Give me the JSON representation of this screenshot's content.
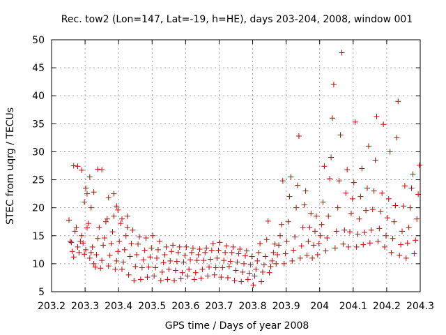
{
  "chart_data": {
    "type": "scatter",
    "title": "Rec. tow2 (Lon=147, Lat=-19, h=HE), days 203-204, 2008, window 001",
    "xlabel": "GPS time / Days of year 2008",
    "ylabel": "STEC from uqrg / TECUs",
    "xlim": [
      203.2,
      204.3
    ],
    "ylim": [
      5,
      50
    ],
    "xticks": [
      "203.2",
      "203.3",
      "203.4",
      "203.5",
      "203.6",
      "203.7",
      "203.8",
      "203.9",
      "204",
      "204.1",
      "204.2",
      "204.3"
    ],
    "yticks": [
      "5",
      "10",
      "15",
      "20",
      "25",
      "30",
      "35",
      "40",
      "45",
      "50"
    ],
    "grid": true,
    "marker": "plus",
    "color": "#cc0000",
    "points": [
      [
        203.252,
        17.8
      ],
      [
        203.256,
        14
      ],
      [
        203.259,
        13.8
      ],
      [
        203.262,
        12.2
      ],
      [
        203.266,
        11.2
      ],
      [
        203.27,
        15.8
      ],
      [
        203.274,
        16.5
      ],
      [
        203.278,
        13
      ],
      [
        203.282,
        12
      ],
      [
        203.286,
        14
      ],
      [
        203.29,
        15
      ],
      [
        203.294,
        13.7
      ],
      [
        203.298,
        11.7
      ],
      [
        203.302,
        12.5
      ],
      [
        203.306,
        16.4
      ],
      [
        203.31,
        17.2
      ],
      [
        203.314,
        11
      ],
      [
        203.318,
        12
      ],
      [
        203.322,
        13
      ],
      [
        203.326,
        10
      ],
      [
        203.33,
        9.4
      ],
      [
        203.334,
        11.6
      ],
      [
        203.338,
        14.5
      ],
      [
        203.342,
        16.5
      ],
      [
        203.346,
        9.2
      ],
      [
        203.35,
        10.6
      ],
      [
        203.354,
        13.3
      ],
      [
        203.358,
        14.6
      ],
      [
        203.362,
        17.5
      ],
      [
        203.366,
        18
      ],
      [
        203.37,
        9.6
      ],
      [
        203.374,
        11.5
      ],
      [
        203.378,
        13.6
      ],
      [
        203.382,
        15.7
      ],
      [
        203.386,
        18.5
      ],
      [
        203.39,
        9
      ],
      [
        203.394,
        10.5
      ],
      [
        203.398,
        12.2
      ],
      [
        203.402,
        14
      ],
      [
        203.406,
        17.2
      ],
      [
        203.41,
        9
      ],
      [
        203.414,
        10.3
      ],
      [
        203.418,
        12.5
      ],
      [
        203.422,
        15
      ],
      [
        203.426,
        16.5
      ],
      [
        203.43,
        8
      ],
      [
        203.434,
        11.3
      ],
      [
        203.438,
        13.6
      ],
      [
        203.442,
        16
      ],
      [
        203.446,
        7
      ],
      [
        203.45,
        9.5
      ],
      [
        203.454,
        11.6
      ],
      [
        203.458,
        13.5
      ],
      [
        203.462,
        14.8
      ],
      [
        203.466,
        7.2
      ],
      [
        203.47,
        9.3
      ],
      [
        203.474,
        10.7
      ],
      [
        203.478,
        12.4
      ],
      [
        203.482,
        14.6
      ],
      [
        203.486,
        7.6
      ],
      [
        203.49,
        9.4
      ],
      [
        203.494,
        11.2
      ],
      [
        203.498,
        12.8
      ],
      [
        203.502,
        15
      ],
      [
        203.506,
        7.8
      ],
      [
        203.51,
        9.3
      ],
      [
        203.514,
        11
      ],
      [
        203.518,
        12.5
      ],
      [
        203.522,
        14
      ],
      [
        203.526,
        7
      ],
      [
        203.53,
        8.5
      ],
      [
        203.534,
        10.2
      ],
      [
        203.538,
        11.6
      ],
      [
        203.542,
        13
      ],
      [
        203.546,
        7.2
      ],
      [
        203.55,
        9
      ],
      [
        203.554,
        10.5
      ],
      [
        203.558,
        12.2
      ],
      [
        203.562,
        13.3
      ],
      [
        203.566,
        7
      ],
      [
        203.57,
        8.8
      ],
      [
        203.574,
        10.4
      ],
      [
        203.578,
        12
      ],
      [
        203.582,
        13
      ],
      [
        203.586,
        7.3
      ],
      [
        203.59,
        8.4
      ],
      [
        203.594,
        10.3
      ],
      [
        203.598,
        11.5
      ],
      [
        203.602,
        13
      ],
      [
        203.606,
        7.8
      ],
      [
        203.61,
        9
      ],
      [
        203.614,
        10.7
      ],
      [
        203.618,
        12
      ],
      [
        203.622,
        12.8
      ],
      [
        203.626,
        7.2
      ],
      [
        203.63,
        8.4
      ],
      [
        203.634,
        10.6
      ],
      [
        203.638,
        11.6
      ],
      [
        203.642,
        12.6
      ],
      [
        203.646,
        7.4
      ],
      [
        203.65,
        9
      ],
      [
        203.654,
        10.6
      ],
      [
        203.658,
        12
      ],
      [
        203.662,
        12.8
      ],
      [
        203.666,
        7.8
      ],
      [
        203.67,
        9.4
      ],
      [
        203.674,
        10.8
      ],
      [
        203.678,
        12.4
      ],
      [
        203.682,
        13.6
      ],
      [
        203.686,
        8
      ],
      [
        203.69,
        9.3
      ],
      [
        203.694,
        11
      ],
      [
        203.698,
        12.4
      ],
      [
        203.702,
        13.8
      ],
      [
        203.706,
        7.6
      ],
      [
        203.71,
        9.3
      ],
      [
        203.714,
        10.6
      ],
      [
        203.718,
        12
      ],
      [
        203.722,
        13.2
      ],
      [
        203.726,
        7.5
      ],
      [
        203.73,
        9.5
      ],
      [
        203.734,
        10.4
      ],
      [
        203.738,
        12
      ],
      [
        203.742,
        13
      ],
      [
        203.746,
        7
      ],
      [
        203.75,
        8.8
      ],
      [
        203.754,
        10.3
      ],
      [
        203.758,
        11.8
      ],
      [
        203.762,
        12.6
      ],
      [
        203.766,
        6.8
      ],
      [
        203.77,
        8.5
      ],
      [
        203.774,
        10
      ],
      [
        203.778,
        11.4
      ],
      [
        203.782,
        12.3
      ],
      [
        203.786,
        7.2
      ],
      [
        203.79,
        8.3
      ],
      [
        203.794,
        9.8
      ],
      [
        203.798,
        11.3
      ],
      [
        203.802,
        6.2
      ],
      [
        203.806,
        7.8
      ],
      [
        203.81,
        9
      ],
      [
        203.814,
        10.5
      ],
      [
        203.818,
        12
      ],
      [
        203.822,
        13.6
      ],
      [
        203.826,
        6.8
      ],
      [
        203.83,
        8.5
      ],
      [
        203.834,
        9.8
      ],
      [
        203.838,
        11.3
      ],
      [
        203.842,
        14.3
      ],
      [
        203.846,
        17.6
      ],
      [
        203.85,
        8.4
      ],
      [
        203.854,
        9.5
      ],
      [
        203.858,
        10.5
      ],
      [
        203.862,
        12
      ],
      [
        203.866,
        13.5
      ],
      [
        203.87,
        10
      ],
      [
        203.874,
        11.6
      ],
      [
        203.878,
        13.3
      ],
      [
        203.882,
        15
      ],
      [
        203.886,
        17
      ],
      [
        203.89,
        24.8
      ],
      [
        203.894,
        10
      ],
      [
        203.898,
        11.8
      ],
      [
        203.902,
        14
      ],
      [
        203.906,
        17.5
      ],
      [
        203.91,
        22
      ],
      [
        203.914,
        25.5
      ],
      [
        203.918,
        10.5
      ],
      [
        203.922,
        12.4
      ],
      [
        203.926,
        14.8
      ],
      [
        203.93,
        20
      ],
      [
        203.934,
        24
      ],
      [
        203.938,
        32.8
      ],
      [
        203.942,
        11
      ],
      [
        203.946,
        13.2
      ],
      [
        203.95,
        16.5
      ],
      [
        203.954,
        20.5
      ],
      [
        203.958,
        23
      ],
      [
        203.962,
        11.5
      ],
      [
        203.966,
        14
      ],
      [
        203.97,
        16.5
      ],
      [
        203.974,
        19
      ],
      [
        203.978,
        11
      ],
      [
        203.982,
        13.3
      ],
      [
        203.986,
        15.8
      ],
      [
        203.99,
        18.5
      ],
      [
        203.994,
        11.6
      ],
      [
        203.998,
        13.6
      ],
      [
        204.002,
        15
      ],
      [
        204.006,
        17
      ],
      [
        204.01,
        21
      ],
      [
        204.014,
        27.4
      ],
      [
        204.018,
        12.3
      ],
      [
        204.022,
        14.6
      ],
      [
        204.026,
        18.5
      ],
      [
        204.03,
        25.2
      ],
      [
        204.034,
        29
      ],
      [
        204.038,
        36
      ],
      [
        204.042,
        42
      ],
      [
        204.046,
        12.8
      ],
      [
        204.05,
        15.8
      ],
      [
        204.054,
        20
      ],
      [
        204.058,
        24.8
      ],
      [
        204.062,
        33
      ],
      [
        204.066,
        47.7
      ],
      [
        204.07,
        13.5
      ],
      [
        204.074,
        16
      ],
      [
        204.078,
        22.6
      ],
      [
        204.082,
        26.8
      ],
      [
        204.086,
        13
      ],
      [
        204.09,
        15.7
      ],
      [
        204.094,
        19
      ],
      [
        204.098,
        21.6
      ],
      [
        204.102,
        24.5
      ],
      [
        204.106,
        35.3
      ],
      [
        204.11,
        13
      ],
      [
        204.114,
        15.3
      ],
      [
        204.118,
        18
      ],
      [
        204.122,
        22
      ],
      [
        204.126,
        27
      ],
      [
        204.13,
        13.4
      ],
      [
        204.134,
        15.6
      ],
      [
        204.138,
        19.5
      ],
      [
        204.142,
        23.5
      ],
      [
        204.146,
        31
      ],
      [
        204.15,
        13.7
      ],
      [
        204.154,
        16
      ],
      [
        204.158,
        19.7
      ],
      [
        204.162,
        23
      ],
      [
        204.166,
        28.5
      ],
      [
        204.17,
        36.3
      ],
      [
        204.174,
        14
      ],
      [
        204.178,
        16.3
      ],
      [
        204.182,
        19.3
      ],
      [
        204.186,
        22.6
      ],
      [
        204.19,
        34.9
      ],
      [
        204.194,
        13
      ],
      [
        204.198,
        15
      ],
      [
        204.202,
        18.2
      ],
      [
        204.206,
        21.6
      ],
      [
        204.21,
        30
      ],
      [
        204.214,
        12
      ],
      [
        204.218,
        14.5
      ],
      [
        204.222,
        17.5
      ],
      [
        204.226,
        20.4
      ],
      [
        204.23,
        32.5
      ],
      [
        204.234,
        39
      ],
      [
        204.238,
        11.5
      ],
      [
        204.242,
        13.4
      ],
      [
        204.246,
        15.8
      ],
      [
        204.25,
        20.3
      ],
      [
        204.254,
        23.9
      ],
      [
        204.258,
        11
      ],
      [
        204.262,
        13.7
      ],
      [
        204.266,
        16.5
      ],
      [
        204.27,
        20
      ],
      [
        204.274,
        23.5
      ],
      [
        204.278,
        26
      ],
      [
        204.282,
        11.8
      ],
      [
        204.286,
        14.2
      ],
      [
        204.29,
        18
      ],
      [
        204.294,
        22.4
      ],
      [
        204.298,
        27.6
      ],
      [
        203.266,
        27.5
      ],
      [
        203.278,
        27.4
      ],
      [
        203.29,
        26.7
      ],
      [
        203.302,
        23.5
      ],
      [
        203.314,
        25.5
      ],
      [
        203.326,
        22.8
      ],
      [
        203.338,
        26.9
      ],
      [
        203.35,
        26.8
      ],
      [
        203.37,
        21.8
      ],
      [
        203.298,
        21
      ],
      [
        203.306,
        22.5
      ],
      [
        203.318,
        20
      ],
      [
        203.386,
        22.5
      ],
      [
        203.394,
        20.3
      ],
      [
        203.398,
        19.6
      ],
      [
        203.41,
        18
      ],
      [
        203.426,
        18.5
      ]
    ]
  }
}
